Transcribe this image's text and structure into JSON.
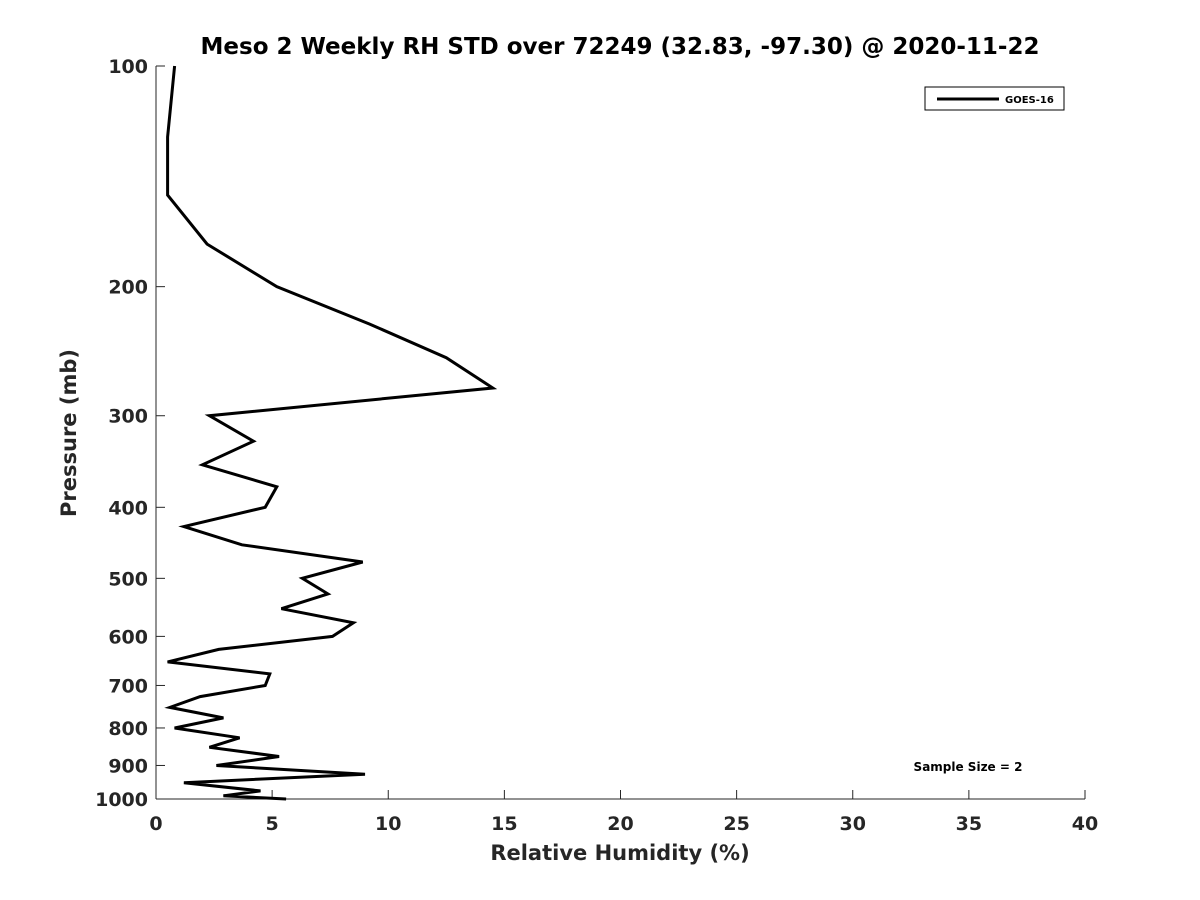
{
  "chart_data": {
    "type": "line",
    "title": "Meso 2 Weekly RH STD over 72249 (32.83, -97.30) @ 2020-11-22",
    "xlabel": "Relative Humidity (%)",
    "ylabel": "Pressure (mb)",
    "xlim": [
      0,
      40
    ],
    "ylim": [
      100,
      1000
    ],
    "y_scale": "log",
    "y_reversed": true,
    "x_ticks": [
      "0",
      "5",
      "10",
      "15",
      "20",
      "25",
      "30",
      "35",
      "40"
    ],
    "y_ticks": [
      "100",
      "200",
      "300",
      "400",
      "500",
      "600",
      "700",
      "800",
      "900",
      "1000"
    ],
    "grid": false,
    "legend_position": "top-right",
    "annotation": "Sample Size = 2",
    "series": [
      {
        "name": "GOES-16",
        "color": "#000000",
        "points": [
          [
            0.8,
            100
          ],
          [
            0.5,
            125
          ],
          [
            0.5,
            150
          ],
          [
            2.2,
            175
          ],
          [
            5.2,
            200
          ],
          [
            9.2,
            225
          ],
          [
            12.5,
            250
          ],
          [
            14.5,
            275
          ],
          [
            2.3,
            300
          ],
          [
            4.2,
            325
          ],
          [
            2.0,
            350
          ],
          [
            5.2,
            375
          ],
          [
            4.7,
            400
          ],
          [
            1.2,
            425
          ],
          [
            3.7,
            450
          ],
          [
            8.9,
            475
          ],
          [
            6.3,
            500
          ],
          [
            7.4,
            525
          ],
          [
            5.4,
            550
          ],
          [
            8.5,
            575
          ],
          [
            7.6,
            600
          ],
          [
            2.7,
            625
          ],
          [
            0.5,
            650
          ],
          [
            4.9,
            675
          ],
          [
            4.7,
            700
          ],
          [
            1.9,
            725
          ],
          [
            0.6,
            750
          ],
          [
            2.9,
            775
          ],
          [
            0.8,
            800
          ],
          [
            3.6,
            825
          ],
          [
            2.3,
            850
          ],
          [
            5.3,
            875
          ],
          [
            2.6,
            900
          ],
          [
            9.0,
            925
          ],
          [
            1.2,
            950
          ],
          [
            4.5,
            975
          ],
          [
            2.9,
            990
          ],
          [
            5.6,
            1000
          ]
        ]
      }
    ]
  }
}
